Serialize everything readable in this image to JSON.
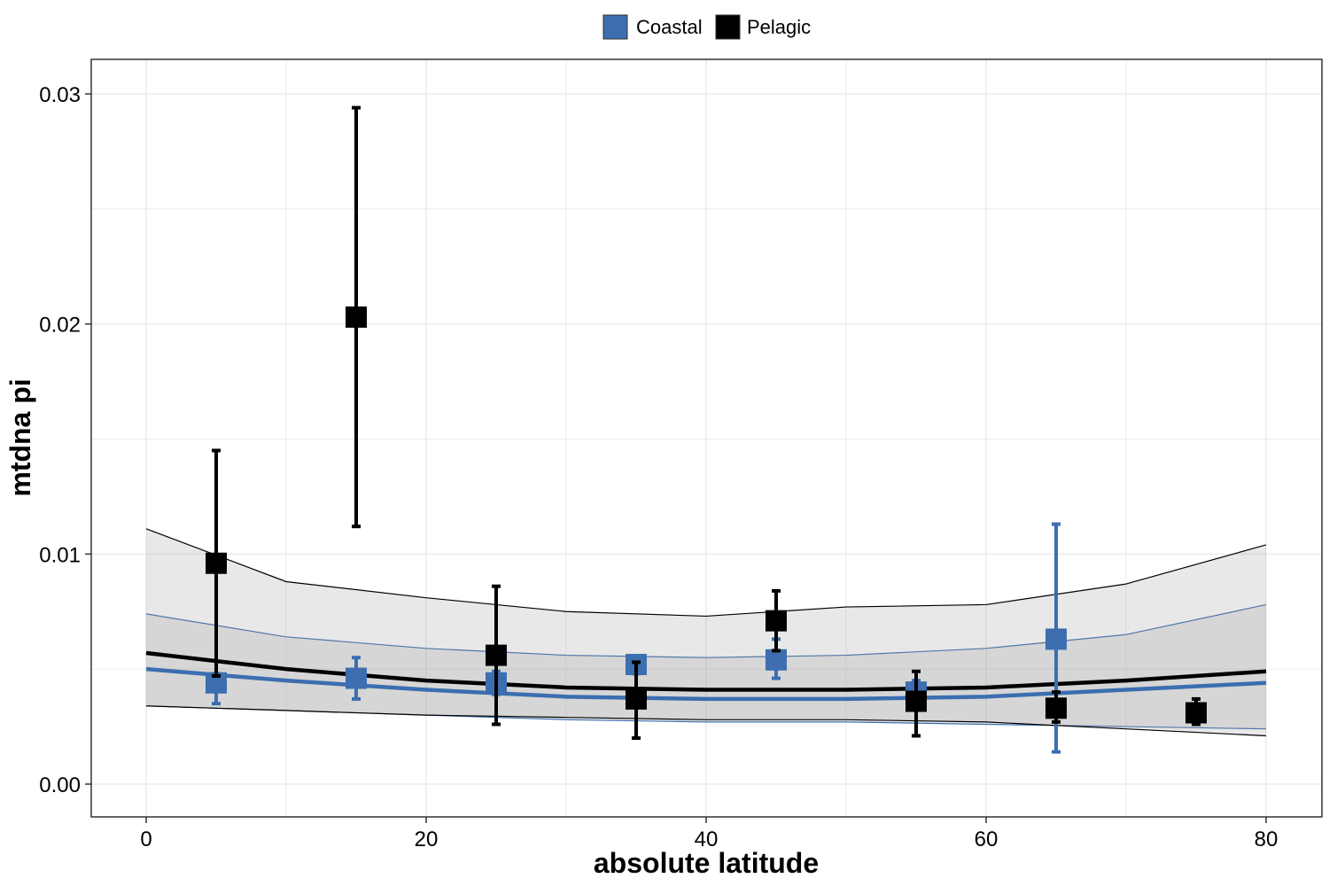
{
  "chart_data": {
    "type": "scatter",
    "xlabel": "absolute latitude",
    "ylabel": "mtdna pi",
    "xlim": [
      -5,
      84
    ],
    "ylim": [
      -0.0014,
      0.0315
    ],
    "x_ticks": [
      0,
      20,
      40,
      60,
      80
    ],
    "x_tick_labels": [
      "0",
      "20",
      "40",
      "60",
      "80"
    ],
    "y_ticks": [
      0,
      0.01,
      0.02,
      0.03
    ],
    "y_tick_labels": [
      "0.00",
      "0.01",
      "0.02",
      "0.03"
    ],
    "grid": true,
    "legend_position": "top",
    "series": [
      {
        "name": "Coastal",
        "color": "#3c6eb0",
        "points": [
          {
            "x": 5,
            "y": 0.0044,
            "ymin": 0.0035,
            "ymax": 0.0048
          },
          {
            "x": 15,
            "y": 0.0046,
            "ymin": 0.0037,
            "ymax": 0.0055
          },
          {
            "x": 25,
            "y": 0.0044,
            "ymin": 0.0039,
            "ymax": 0.0049
          },
          {
            "x": 35,
            "y": 0.0052,
            "ymin": 0.0048,
            "ymax": 0.0055
          },
          {
            "x": 45,
            "y": 0.0054,
            "ymin": 0.0046,
            "ymax": 0.0063
          },
          {
            "x": 55,
            "y": 0.004,
            "ymin": 0.0033,
            "ymax": 0.0045
          },
          {
            "x": 65,
            "y": 0.0063,
            "ymin": 0.0014,
            "ymax": 0.0113
          }
        ],
        "fit": {
          "x": [
            0,
            10,
            20,
            30,
            40,
            50,
            60,
            70,
            80
          ],
          "y": [
            0.005,
            0.0045,
            0.0041,
            0.0038,
            0.0037,
            0.0037,
            0.0038,
            0.0041,
            0.0044
          ],
          "lower": [
            0.0034,
            0.0032,
            0.003,
            0.0028,
            0.0027,
            0.0027,
            0.0026,
            0.0025,
            0.0024
          ],
          "upper": [
            0.0074,
            0.0064,
            0.0059,
            0.0056,
            0.0055,
            0.0056,
            0.0059,
            0.0065,
            0.0078
          ]
        }
      },
      {
        "name": "Pelagic",
        "color": "#000000",
        "points": [
          {
            "x": 5,
            "y": 0.0096,
            "ymin": 0.0047,
            "ymax": 0.0145
          },
          {
            "x": 15,
            "y": 0.0203,
            "ymin": 0.0112,
            "ymax": 0.0294
          },
          {
            "x": 25,
            "y": 0.0056,
            "ymin": 0.0026,
            "ymax": 0.0086
          },
          {
            "x": 35,
            "y": 0.0037,
            "ymin": 0.002,
            "ymax": 0.0053
          },
          {
            "x": 45,
            "y": 0.0071,
            "ymin": 0.0058,
            "ymax": 0.0084
          },
          {
            "x": 55,
            "y": 0.0036,
            "ymin": 0.0021,
            "ymax": 0.0049
          },
          {
            "x": 65,
            "y": 0.0033,
            "ymin": 0.0027,
            "ymax": 0.004
          },
          {
            "x": 75,
            "y": 0.0031,
            "ymin": 0.0026,
            "ymax": 0.0037
          }
        ],
        "fit": {
          "x": [
            0,
            10,
            20,
            30,
            40,
            50,
            60,
            70,
            80
          ],
          "y": [
            0.0057,
            0.005,
            0.0045,
            0.0042,
            0.0041,
            0.0041,
            0.0042,
            0.0045,
            0.0049
          ],
          "lower": [
            0.0034,
            0.0032,
            0.003,
            0.0029,
            0.0028,
            0.0028,
            0.0027,
            0.0024,
            0.0021
          ],
          "upper": [
            0.0111,
            0.0088,
            0.0081,
            0.0075,
            0.0073,
            0.0077,
            0.0078,
            0.0087,
            0.0104
          ]
        }
      }
    ]
  }
}
